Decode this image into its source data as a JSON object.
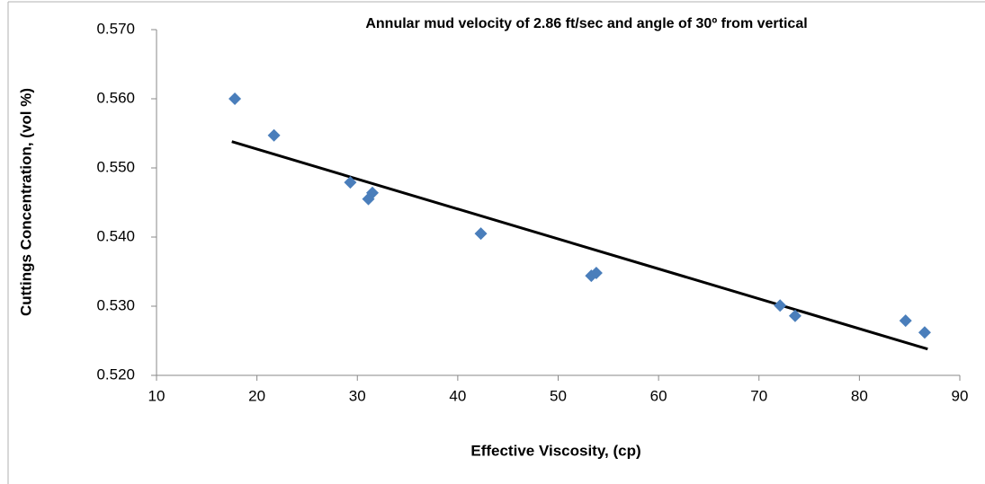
{
  "chart_data": {
    "type": "scatter",
    "title": "Annular mud velocity of 2.86 ft/sec and angle of 30º from vertical",
    "x_label": "Effective Viscosity, (cp)",
    "y_label": "Cuttings Concentration, (vol %)",
    "series": [
      {
        "color": "#4a7ebb",
        "x": [
          17.8,
          21.7,
          29.3,
          31.5,
          31.1,
          42.3,
          53.3,
          53.8,
          72.1,
          73.6,
          84.6,
          86.5
        ],
        "values": [
          0.56,
          0.5547,
          0.5479,
          0.5464,
          0.5455,
          0.5405,
          0.5344,
          0.5348,
          0.5301,
          0.5286,
          0.5279,
          0.5262
        ]
      }
    ],
    "trendline": {
      "color": "#000000",
      "x": [
        17.5,
        86.8
      ],
      "values": [
        0.5538,
        0.5238
      ]
    },
    "xlim": [
      10,
      90
    ],
    "xticks": [
      10,
      20,
      30,
      40,
      50,
      60,
      70,
      80,
      90
    ],
    "ylim": [
      0.52,
      0.57
    ],
    "yticks": [
      {
        "value": 0.52,
        "label": "0.520"
      },
      {
        "value": 0.53,
        "label": "0.530"
      },
      {
        "value": 0.54,
        "label": "0.540"
      },
      {
        "value": 0.55,
        "label": "0.550"
      },
      {
        "value": 0.56,
        "label": "0.560"
      },
      {
        "value": 0.57,
        "label": "0.570"
      }
    ],
    "grid": false
  }
}
